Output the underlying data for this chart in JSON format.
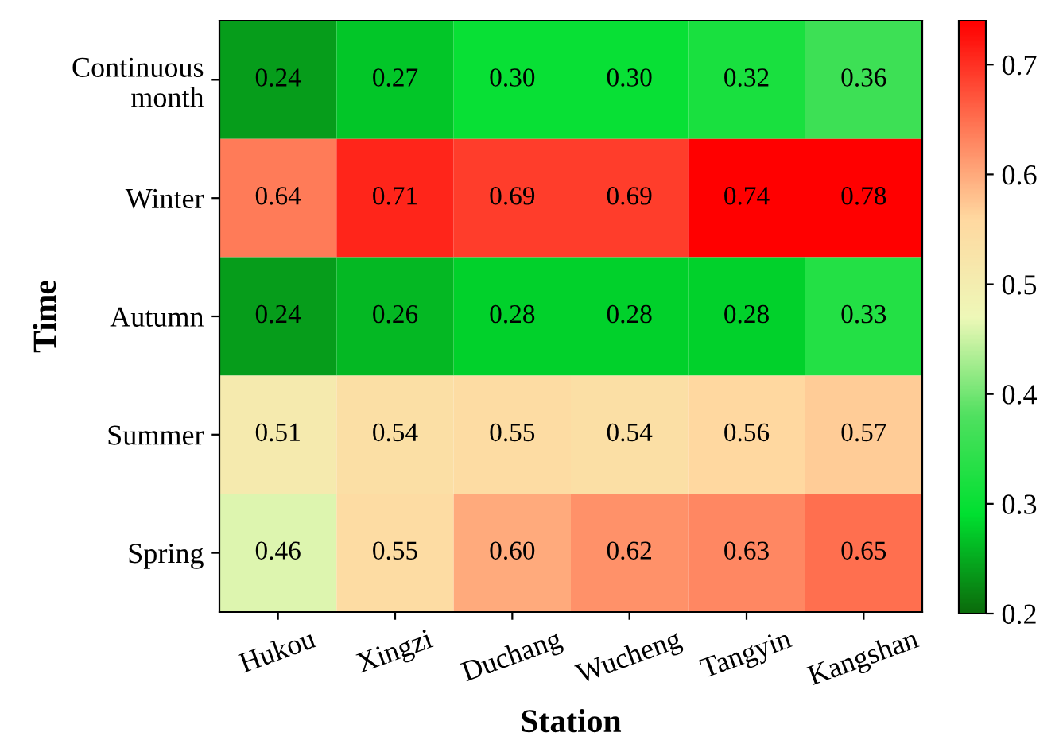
{
  "chart_data": {
    "type": "heatmap",
    "xlabel": "Station",
    "ylabel": "Time",
    "categories": [
      "Hukou",
      "Xingzi",
      "Duchang",
      "Wucheng",
      "Tangyin",
      "Kangshan"
    ],
    "y_categories": [
      "Continuous\nmonth",
      "Winter",
      "Autumn",
      "Summer",
      "Spring"
    ],
    "cells": [
      [
        0.24,
        0.27,
        0.3,
        0.3,
        0.32,
        0.36
      ],
      [
        0.64,
        0.71,
        0.69,
        0.69,
        0.74,
        0.78
      ],
      [
        0.24,
        0.26,
        0.28,
        0.28,
        0.28,
        0.33
      ],
      [
        0.51,
        0.54,
        0.55,
        0.54,
        0.56,
        0.57
      ],
      [
        0.46,
        0.55,
        0.6,
        0.62,
        0.63,
        0.65
      ]
    ],
    "cell_labels": [
      [
        "0.24",
        "0.27",
        "0.30",
        "0.30",
        "0.32",
        "0.36"
      ],
      [
        "0.64",
        "0.71",
        "0.69",
        "0.69",
        "0.74",
        "0.78"
      ],
      [
        "0.24",
        "0.26",
        "0.28",
        "0.28",
        "0.28",
        "0.33"
      ],
      [
        "0.51",
        "0.54",
        "0.55",
        "0.54",
        "0.56",
        "0.57"
      ],
      [
        "0.46",
        "0.55",
        "0.60",
        "0.62",
        "0.63",
        "0.65"
      ]
    ],
    "colors": [
      "#0b6b0b",
      "#00e030",
      "#50e060",
      "#eef8b8",
      "#ffd8a0",
      "#ff7050",
      "#ff0000"
    ],
    "clim": [
      0.2,
      0.74
    ],
    "cticks": [
      0.2,
      0.3,
      0.4,
      0.5,
      0.6,
      0.7
    ]
  }
}
